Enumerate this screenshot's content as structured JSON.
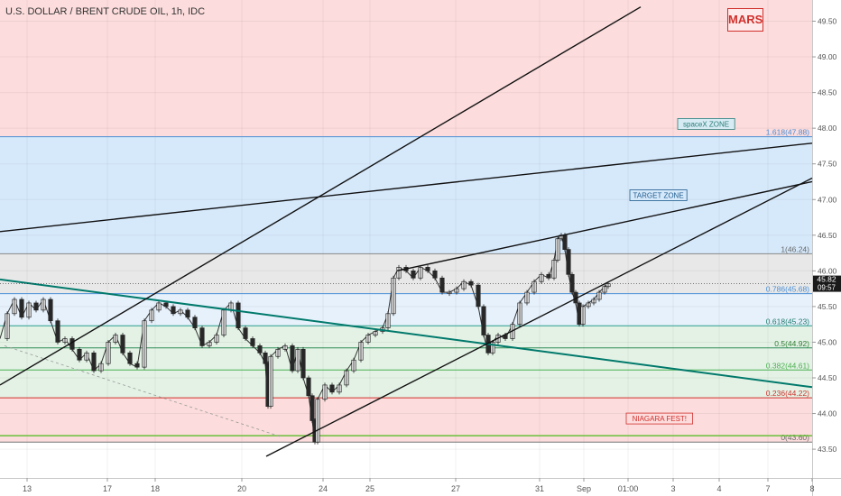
{
  "title": "U.S. DOLLAR / BRENT CRUDE OIL, 1h, IDC",
  "logo": "MARS",
  "price": {
    "value": "45.82",
    "timer": "09:57"
  },
  "chart_data": {
    "type": "candlestick",
    "y_ticks": [
      "49.50",
      "49.00",
      "48.50",
      "48.00",
      "47.50",
      "47.00",
      "46.50",
      "46.00",
      "45.50",
      "45.00",
      "44.50",
      "44.00",
      "43.50"
    ],
    "ylim": [
      43.4,
      49.7
    ],
    "x_ticks": [
      "13",
      "17",
      "18",
      "20",
      "24",
      "25",
      "27",
      "31",
      "Sep",
      "01:00",
      "3",
      "4",
      "7",
      "8"
    ],
    "fib_levels": [
      {
        "label": "1.618(47.88)",
        "value": 47.88
      },
      {
        "label": "1(46.24)",
        "value": 46.24
      },
      {
        "label": "0.786(45.68)",
        "value": 45.68
      },
      {
        "label": "0.618(45.23)",
        "value": 45.23
      },
      {
        "label": "0.5(44.92)",
        "value": 44.92
      },
      {
        "label": "0.382(44.61)",
        "value": 44.61
      },
      {
        "label": "0.236(44.22)",
        "value": 44.22
      },
      {
        "label": "0(43.60)",
        "value": 43.6
      }
    ],
    "zones": [
      {
        "label": "spaceX ZONE",
        "from": 47.88,
        "to": 49.7
      },
      {
        "label": "TARGET ZONE",
        "from": 46.24,
        "to": 47.88
      },
      {
        "label": "NIAGARA FEST!",
        "from": 43.6,
        "to": 44.22
      }
    ],
    "price_path": [
      [
        0,
        45.05
      ],
      [
        8,
        45.4
      ],
      [
        16,
        45.6
      ],
      [
        24,
        45.35
      ],
      [
        32,
        45.55
      ],
      [
        40,
        45.45
      ],
      [
        48,
        45.6
      ],
      [
        56,
        45.3
      ],
      [
        64,
        45.0
      ],
      [
        72,
        45.05
      ],
      [
        80,
        44.9
      ],
      [
        88,
        44.75
      ],
      [
        96,
        44.85
      ],
      [
        104,
        44.6
      ],
      [
        112,
        44.7
      ],
      [
        120,
        45.0
      ],
      [
        128,
        45.1
      ],
      [
        136,
        44.85
      ],
      [
        144,
        44.7
      ],
      [
        152,
        44.65
      ],
      [
        160,
        45.3
      ],
      [
        168,
        45.45
      ],
      [
        176,
        45.55
      ],
      [
        184,
        45.5
      ],
      [
        192,
        45.4
      ],
      [
        200,
        45.45
      ],
      [
        208,
        45.35
      ],
      [
        216,
        45.2
      ],
      [
        224,
        44.95
      ],
      [
        232,
        45.0
      ],
      [
        240,
        45.1
      ],
      [
        248,
        45.45
      ],
      [
        256,
        45.55
      ],
      [
        264,
        45.2
      ],
      [
        272,
        45.05
      ],
      [
        280,
        44.95
      ],
      [
        288,
        44.85
      ],
      [
        294,
        44.7
      ],
      [
        297,
        44.1
      ],
      [
        300,
        44.8
      ],
      [
        308,
        44.9
      ],
      [
        316,
        44.95
      ],
      [
        324,
        44.6
      ],
      [
        330,
        44.9
      ],
      [
        336,
        44.5
      ],
      [
        342,
        44.25
      ],
      [
        346,
        43.9
      ],
      [
        349,
        43.6
      ],
      [
        352,
        44.2
      ],
      [
        360,
        44.4
      ],
      [
        368,
        44.3
      ],
      [
        376,
        44.4
      ],
      [
        384,
        44.6
      ],
      [
        392,
        44.75
      ],
      [
        400,
        45.0
      ],
      [
        408,
        45.1
      ],
      [
        416,
        45.15
      ],
      [
        424,
        45.2
      ],
      [
        430,
        45.4
      ],
      [
        436,
        45.9
      ],
      [
        442,
        46.05
      ],
      [
        450,
        46.0
      ],
      [
        458,
        45.9
      ],
      [
        466,
        46.05
      ],
      [
        474,
        46.0
      ],
      [
        482,
        45.9
      ],
      [
        490,
        45.7
      ],
      [
        498,
        45.7
      ],
      [
        506,
        45.75
      ],
      [
        514,
        45.85
      ],
      [
        522,
        45.8
      ],
      [
        530,
        45.5
      ],
      [
        536,
        45.1
      ],
      [
        541,
        44.85
      ],
      [
        546,
        45.0
      ],
      [
        552,
        45.1
      ],
      [
        560,
        45.05
      ],
      [
        568,
        45.25
      ],
      [
        576,
        45.55
      ],
      [
        584,
        45.7
      ],
      [
        592,
        45.85
      ],
      [
        600,
        45.95
      ],
      [
        608,
        45.9
      ],
      [
        614,
        46.15
      ],
      [
        618,
        46.45
      ],
      [
        622,
        46.5
      ],
      [
        626,
        46.3
      ],
      [
        630,
        45.95
      ],
      [
        634,
        45.7
      ],
      [
        638,
        45.55
      ],
      [
        642,
        45.25
      ],
      [
        646,
        45.5
      ],
      [
        652,
        45.55
      ],
      [
        658,
        45.6
      ],
      [
        664,
        45.7
      ],
      [
        670,
        45.78
      ],
      [
        674,
        45.82
      ]
    ]
  }
}
